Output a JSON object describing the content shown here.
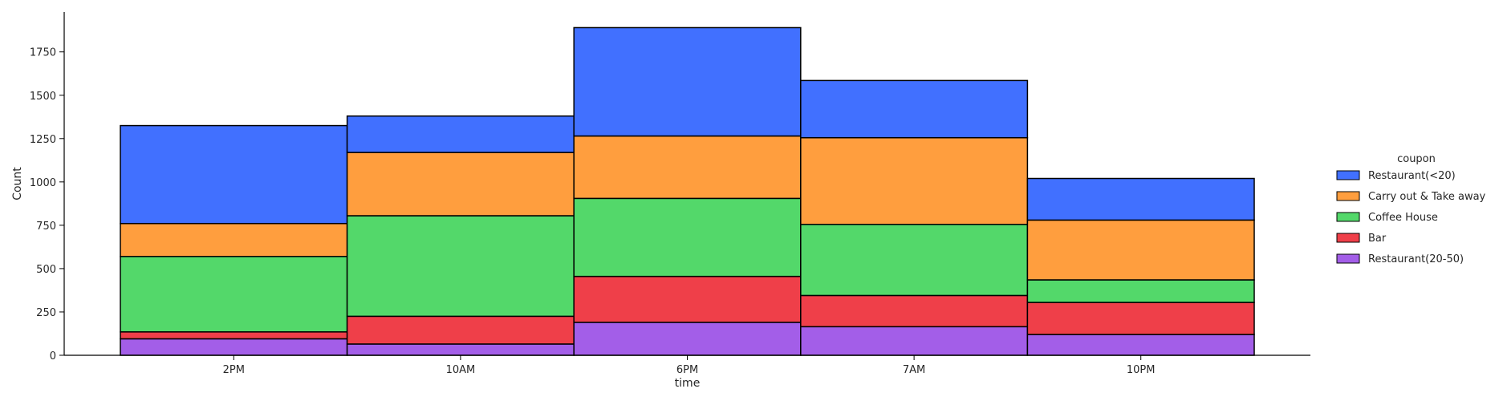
{
  "chart_data": {
    "type": "bar",
    "stacked": true,
    "xlabel": "time",
    "ylabel": "Count",
    "categories": [
      "2PM",
      "10AM",
      "6PM",
      "7AM",
      "10PM"
    ],
    "yticks": [
      0,
      250,
      500,
      750,
      1000,
      1250,
      1500,
      1750
    ],
    "ylim": [
      0,
      1980
    ],
    "legend": {
      "title": "coupon",
      "placement": "right"
    },
    "series": [
      {
        "name": "Restaurant(20-50)",
        "color": "#a35ee8",
        "values": [
          95,
          65,
          190,
          165,
          120
        ]
      },
      {
        "name": "Bar",
        "color": "#ef3f49",
        "values": [
          40,
          160,
          265,
          180,
          185
        ]
      },
      {
        "name": "Coffee House",
        "color": "#53d86a",
        "values": [
          435,
          580,
          450,
          410,
          130
        ]
      },
      {
        "name": "Carry out & Take away",
        "color": "#ff9e3e",
        "values": [
          190,
          365,
          360,
          500,
          345
        ]
      },
      {
        "name": "Restaurant(<20)",
        "color": "#4170ff",
        "values": [
          565,
          210,
          625,
          330,
          240
        ]
      }
    ],
    "legend_order": [
      "Restaurant(<20)",
      "Carry out & Take away",
      "Coffee House",
      "Bar",
      "Restaurant(20-50)"
    ]
  }
}
